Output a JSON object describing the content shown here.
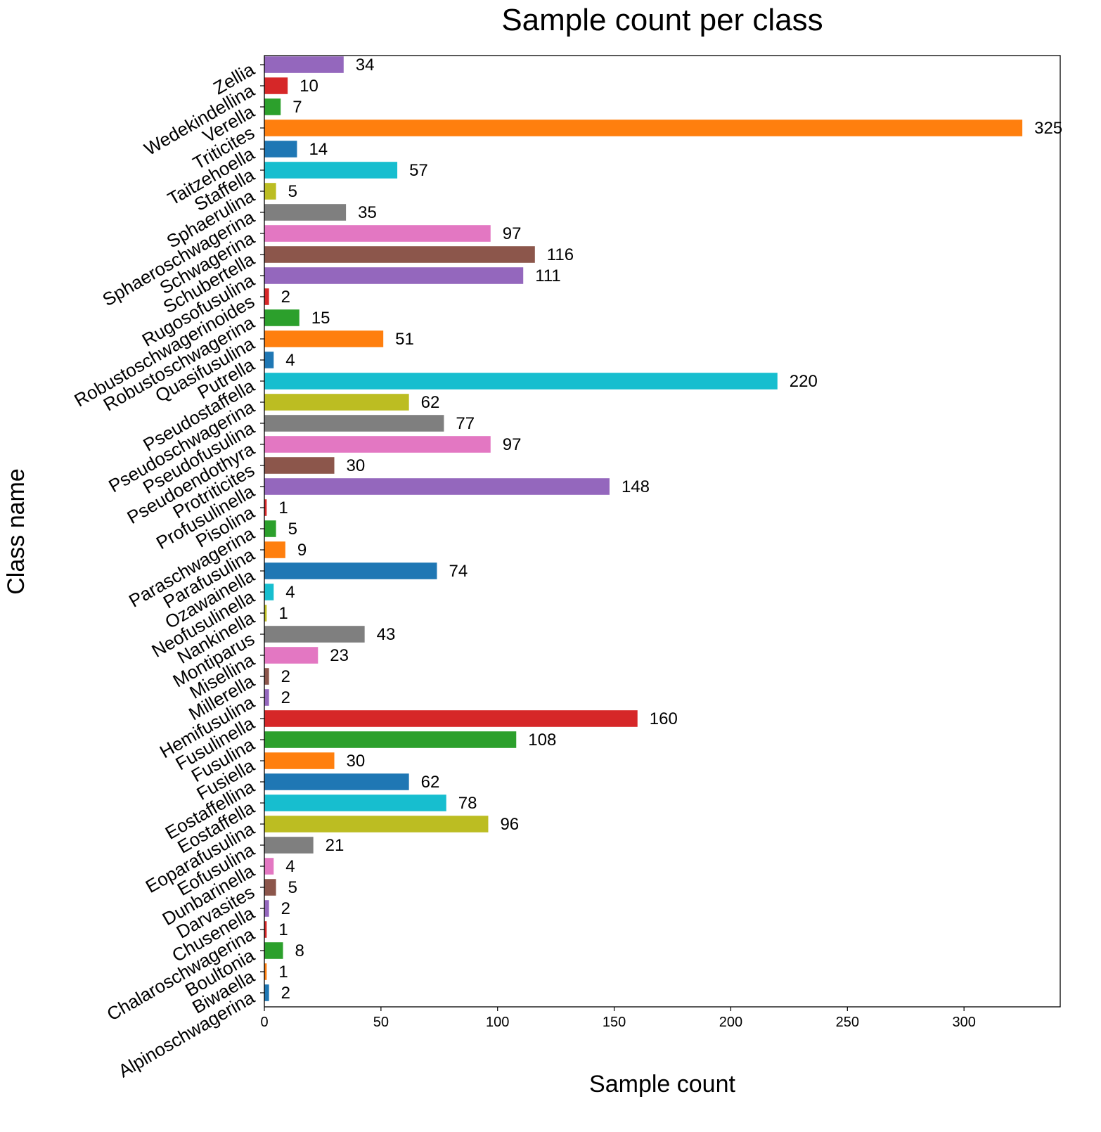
{
  "chart_data": {
    "type": "bar",
    "orientation": "horizontal",
    "title": "Sample count per class",
    "xlabel": "Sample count",
    "ylabel": "Class name",
    "xlim": [
      0,
      341.25
    ],
    "xticks": [
      0,
      50,
      100,
      150,
      200,
      250,
      300
    ],
    "grid": false,
    "categories": [
      "Alpinoschwagerina",
      "Biwaella",
      "Boultonia",
      "Chalaroschwagerina",
      "Chusenella",
      "Darvasites",
      "Dunbarinella",
      "Eofusulina",
      "Eoparafusulina",
      "Eostaffella",
      "Eostaffellina",
      "Fusiella",
      "Fusulina",
      "Fusulinella",
      "Hemifusulina",
      "Millerella",
      "Misellina",
      "Montiparus",
      "Nankinella",
      "Neofusulinella",
      "Ozawainella",
      "Parafusulina",
      "Paraschwagerina",
      "Pisolina",
      "Profusulinella",
      "Protriticites",
      "Pseudoendothyra",
      "Pseudofusulina",
      "Pseudoschwagerina",
      "Pseudostaffella",
      "Putrella",
      "Quasifusulina",
      "Robustoschwagerina",
      "Robustoschwagerinoides",
      "Rugosofusulina",
      "Schubertella",
      "Schwagerina",
      "Sphaeroschwagerina",
      "Sphaerulina",
      "Staffella",
      "Taitzehoella",
      "Triticites",
      "Verella",
      "Wedekindellina",
      "Zellia"
    ],
    "values": [
      2,
      1,
      8,
      1,
      2,
      5,
      4,
      21,
      96,
      78,
      62,
      30,
      108,
      160,
      2,
      2,
      23,
      43,
      1,
      4,
      74,
      9,
      5,
      1,
      148,
      30,
      97,
      77,
      62,
      220,
      4,
      51,
      15,
      2,
      111,
      116,
      97,
      35,
      5,
      57,
      14,
      325,
      7,
      10,
      34
    ],
    "colors": [
      "#1f77b4",
      "#ff7f0e",
      "#2ca02c",
      "#d62728",
      "#9467bd",
      "#8c564b",
      "#e377c2",
      "#7f7f7f",
      "#bcbd22",
      "#17becf"
    ]
  }
}
